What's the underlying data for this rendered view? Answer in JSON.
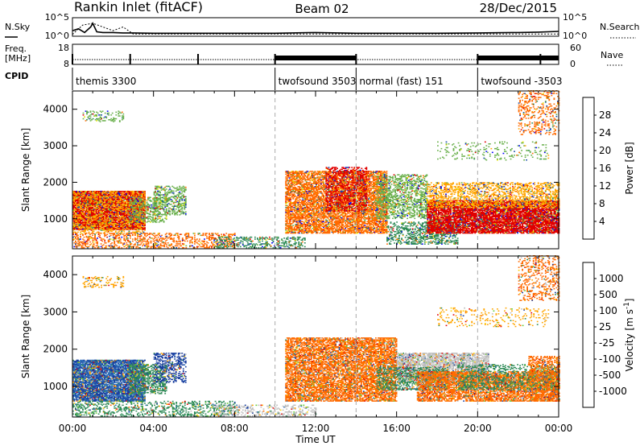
{
  "header": {
    "station": "Rankin Inlet (fitACF)",
    "beam": "Beam 02",
    "date": "28/Dec/2015"
  },
  "chart_data": [
    {
      "id": "noise",
      "type": "line",
      "left_label": "N.Sky",
      "right_label": "N.Search",
      "left_ticks": [
        "10^5",
        "10^0"
      ],
      "right_ticks": [
        "10^5",
        "10^0"
      ],
      "series": [
        {
          "name": "N.Sky",
          "style": "solid",
          "x": [
            0,
            0.3,
            0.6,
            0.9,
            1.0,
            1.2,
            1.5,
            2,
            2.5,
            3,
            4,
            6,
            8,
            10,
            12,
            14,
            16,
            18,
            20,
            22,
            23,
            24
          ],
          "y": [
            1.5,
            2.0,
            1.0,
            2.5,
            3.5,
            1.2,
            1.0,
            1.0,
            0.9,
            0.9,
            0.8,
            0.8,
            0.8,
            0.8,
            1.0,
            0.8,
            0.8,
            0.8,
            0.9,
            1.0,
            1.1,
            1.3
          ]
        },
        {
          "name": "N.Search",
          "style": "dotted",
          "x": [
            0,
            0.5,
            1.0,
            1.5,
            2.0,
            2.5,
            3.0,
            24
          ],
          "y": [
            0.5,
            3.0,
            3.5,
            2.5,
            1.5,
            2.5,
            0.6,
            0.6
          ]
        }
      ],
      "ylim": [
        0,
        5
      ]
    },
    {
      "id": "freq-nave",
      "type": "line",
      "left_label": "Freq.",
      "left_unit": "[MHz]",
      "left_ticks": [
        "18",
        "8"
      ],
      "right_label": "Nave",
      "right_ticks": [
        "60",
        "0"
      ],
      "freq_ylim": [
        8,
        18
      ],
      "freq": {
        "x": [
          0,
          24
        ],
        "y": [
          10.4,
          10.4
        ]
      },
      "nave_dense_intervals": [
        [
          10.0,
          14.0
        ],
        [
          20.0,
          24.0
        ]
      ],
      "nave_spikes": [
        0,
        2.85,
        6.2,
        10.0,
        14.0,
        20.0,
        23.1
      ],
      "cpid_label": "CPID"
    },
    {
      "id": "cpid",
      "type": "table",
      "segments": [
        {
          "start": 0.0,
          "end": 10.0,
          "name": "themis 3300"
        },
        {
          "start": 10.0,
          "end": 14.0,
          "name": "twofsound 3503"
        },
        {
          "start": 14.0,
          "end": 20.0,
          "name": "normal (fast) 151"
        },
        {
          "start": 20.0,
          "end": 24.0,
          "name": "twofsound -3503"
        }
      ]
    },
    {
      "id": "power",
      "type": "heatmap",
      "ylabel": "Slant Range [km]",
      "yticks": [
        1000,
        2000,
        3000,
        4000
      ],
      "ylim": [
        180,
        4500
      ],
      "xlim": [
        0,
        24
      ],
      "colorbar": {
        "label": "Power [dB]",
        "ticks": [
          "4",
          "8",
          "12",
          "16",
          "20",
          "24",
          "28"
        ],
        "colors": [
          "#0000ff",
          "#1a4da8",
          "#2e8b57",
          "#6ab04c",
          "#e6e600",
          "#ffa500",
          "#ff6a00",
          "#e00000"
        ]
      },
      "regions": [
        {
          "t0": 0.0,
          "t1": 3.6,
          "r0": 700,
          "r1": 1750,
          "value": 28,
          "density": 0.9
        },
        {
          "t0": 0.0,
          "t1": 3.6,
          "r0": 600,
          "r1": 1750,
          "value": 20,
          "density": 0.35
        },
        {
          "t0": 2.8,
          "t1": 4.6,
          "r0": 900,
          "r1": 1600,
          "value": 12,
          "density": 0.4
        },
        {
          "t0": 4.0,
          "t1": 5.6,
          "r0": 1100,
          "r1": 1900,
          "value": 12,
          "density": 0.45
        },
        {
          "t0": 0.0,
          "t1": 8.0,
          "r0": 200,
          "r1": 600,
          "value": 24,
          "density": 0.35
        },
        {
          "t0": 7.0,
          "t1": 11.5,
          "r0": 200,
          "r1": 500,
          "value": 8,
          "density": 0.3
        },
        {
          "t0": 0.5,
          "t1": 2.5,
          "r0": 3650,
          "r1": 3950,
          "value": 12,
          "density": 0.25
        },
        {
          "t0": 10.5,
          "t1": 15.5,
          "r0": 600,
          "r1": 2300,
          "value": 24,
          "density": 0.7
        },
        {
          "t0": 12.5,
          "t1": 14.5,
          "r0": 1200,
          "r1": 2400,
          "value": 28,
          "density": 0.45
        },
        {
          "t0": 15.0,
          "t1": 17.5,
          "r0": 1000,
          "r1": 2200,
          "value": 12,
          "density": 0.45
        },
        {
          "t0": 15.5,
          "t1": 19.0,
          "r0": 300,
          "r1": 900,
          "value": 8,
          "density": 0.4
        },
        {
          "t0": 17.5,
          "t1": 24.0,
          "r0": 600,
          "r1": 1500,
          "value": 28,
          "density": 0.85
        },
        {
          "t0": 17.5,
          "t1": 24.0,
          "r0": 1300,
          "r1": 2000,
          "value": 20,
          "density": 0.45
        },
        {
          "t0": 18.0,
          "t1": 23.5,
          "r0": 2600,
          "r1": 3100,
          "value": 12,
          "density": 0.12
        },
        {
          "t0": 22.0,
          "t1": 24.0,
          "r0": 3300,
          "r1": 4500,
          "value": 24,
          "density": 0.25
        }
      ]
    },
    {
      "id": "velocity",
      "type": "heatmap",
      "ylabel": "Slant Range [km]",
      "yticks": [
        1000,
        2000,
        3000,
        4000
      ],
      "ylim": [
        180,
        4500
      ],
      "xlim": [
        0,
        24
      ],
      "colorbar": {
        "label": "Velocity [m s^-1]",
        "ticks": [
          "1000",
          "500",
          "100",
          "25",
          "-25",
          "-100",
          "-500",
          "-1000"
        ],
        "colors": [
          "#1a3fa0",
          "#2f6fb8",
          "#2e8b57",
          "#66cc33",
          "#bebebe",
          "#ffd000",
          "#ffa500",
          "#ff6a00",
          "#e00000"
        ]
      },
      "regions": [
        {
          "t0": 0.0,
          "t1": 3.6,
          "r0": 600,
          "r1": 1700,
          "value": 500,
          "density": 0.8
        },
        {
          "t0": 0.0,
          "t1": 3.6,
          "r0": 600,
          "r1": 1700,
          "value": 1000,
          "density": 0.3
        },
        {
          "t0": 2.8,
          "t1": 4.6,
          "r0": 800,
          "r1": 1600,
          "value": 100,
          "density": 0.5
        },
        {
          "t0": 4.0,
          "t1": 5.6,
          "r0": 1100,
          "r1": 1900,
          "value": 1000,
          "density": 0.45
        },
        {
          "t0": 0.0,
          "t1": 8.0,
          "r0": 200,
          "r1": 600,
          "value": 100,
          "density": 0.3
        },
        {
          "t0": 7.0,
          "t1": 12.0,
          "r0": 200,
          "r1": 500,
          "value": 25,
          "density": 0.3
        },
        {
          "t0": 0.5,
          "t1": 2.5,
          "r0": 3650,
          "r1": 3950,
          "value": -100,
          "density": 0.25
        },
        {
          "t0": 10.5,
          "t1": 16.0,
          "r0": 600,
          "r1": 2300,
          "value": -500,
          "density": 0.7
        },
        {
          "t0": 16.0,
          "t1": 20.5,
          "r0": 1100,
          "r1": 1900,
          "value": -25,
          "density": 0.7
        },
        {
          "t0": 15.0,
          "t1": 18.5,
          "r0": 900,
          "r1": 1500,
          "value": 100,
          "density": 0.45
        },
        {
          "t0": 17.0,
          "t1": 24.0,
          "r0": 600,
          "r1": 1400,
          "value": -500,
          "density": 0.7
        },
        {
          "t0": 19.0,
          "t1": 24.0,
          "r0": 900,
          "r1": 1600,
          "value": 100,
          "density": 0.35
        },
        {
          "t0": 22.5,
          "t1": 24.0,
          "r0": 600,
          "r1": 1800,
          "value": -500,
          "density": 0.5
        },
        {
          "t0": 18.0,
          "t1": 23.5,
          "r0": 2600,
          "r1": 3100,
          "value": -100,
          "density": 0.12
        },
        {
          "t0": 22.0,
          "t1": 24.0,
          "r0": 3300,
          "r1": 4500,
          "value": -500,
          "density": 0.25
        }
      ],
      "xticks": [
        "00:00",
        "04:00",
        "08:00",
        "12:00",
        "16:00",
        "20:00",
        "00:00"
      ],
      "xlabel": "Time UT"
    }
  ]
}
